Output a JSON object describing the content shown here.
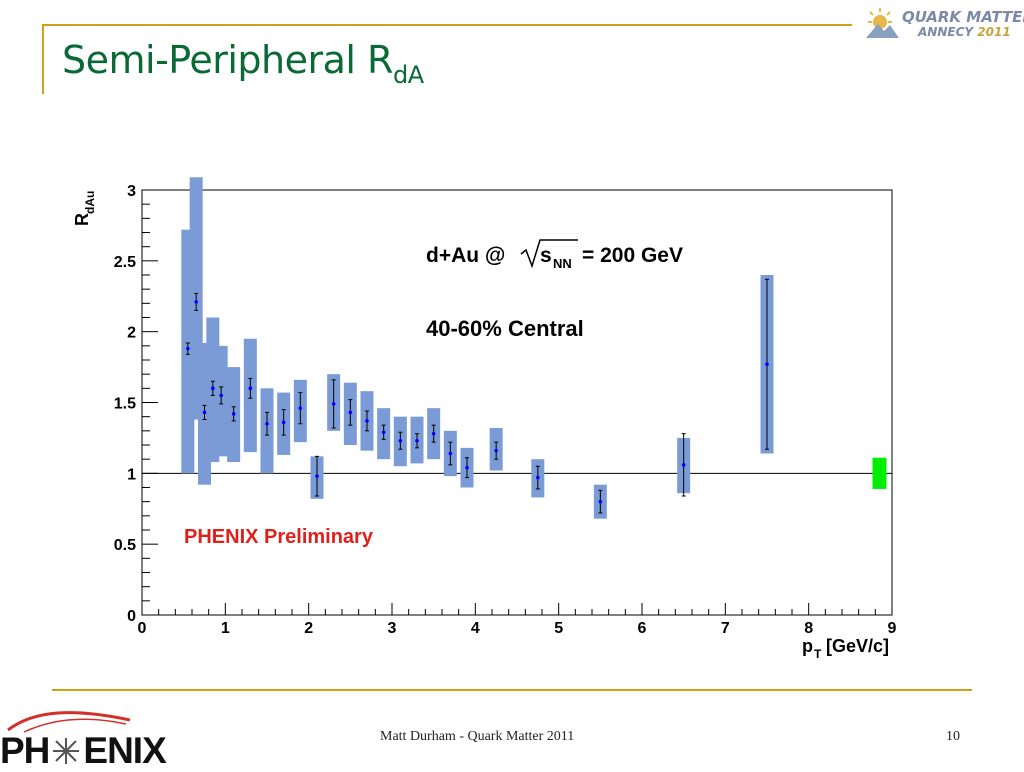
{
  "slide": {
    "title_main": "Semi-Peripheral R",
    "title_sub": "dA",
    "footer": "Matt Durham - Quark Matter 2011",
    "page_number": "10"
  },
  "logos": {
    "conference_line1": "QUARK MATTER",
    "conference_line2": "ANNECY",
    "conference_year": "2011",
    "phenix": "PH",
    "phenix_end": "ENIX"
  },
  "colors": {
    "title": "#0a6a36",
    "accent_rule": "#d4a017",
    "syst_box": "#7b9bd6",
    "point": "#0000ff",
    "norm_box": "#00ee00",
    "preliminary": "#e0201c"
  },
  "chart_data": {
    "type": "scatter",
    "ylabel_main": "R",
    "ylabel_sub": "dAu",
    "xlabel_main": "p",
    "xlabel_sub": "T",
    "xlabel_unit": "[GeV/c]",
    "xlim": [
      0,
      9
    ],
    "ylim": [
      0,
      3
    ],
    "x_ticks": [
      "0",
      "1",
      "2",
      "3",
      "4",
      "5",
      "6",
      "7",
      "8",
      "9"
    ],
    "y_ticks": [
      "0",
      "0.5",
      "1",
      "1.5",
      "2",
      "2.5",
      "3"
    ],
    "reference_line": 1,
    "annotations": {
      "system_prefix": "d+Au @",
      "system_s": "s",
      "system_nn": "NN",
      "system_energy": "= 200 GeV",
      "centrality": "40-60% Central",
      "preliminary": "PHENIX Preliminary"
    },
    "series": [
      {
        "points": [
          {
            "x": 0.55,
            "y": 1.88,
            "stat": 0.04,
            "syst": [
              1.0,
              2.72
            ]
          },
          {
            "x": 0.65,
            "y": 2.21,
            "stat": 0.06,
            "syst": [
              1.38,
              3.1
            ]
          },
          {
            "x": 0.75,
            "y": 1.43,
            "stat": 0.05,
            "syst": [
              0.92,
              1.92
            ]
          },
          {
            "x": 0.85,
            "y": 1.6,
            "stat": 0.05,
            "syst": [
              1.08,
              2.1
            ]
          },
          {
            "x": 0.95,
            "y": 1.55,
            "stat": 0.06,
            "syst": [
              1.12,
              1.9
            ]
          },
          {
            "x": 1.1,
            "y": 1.42,
            "stat": 0.05,
            "syst": [
              1.08,
              1.75
            ]
          },
          {
            "x": 1.3,
            "y": 1.6,
            "stat": 0.07,
            "syst": [
              1.15,
              1.95
            ]
          },
          {
            "x": 1.5,
            "y": 1.35,
            "stat": 0.08,
            "syst": [
              1.0,
              1.6
            ]
          },
          {
            "x": 1.7,
            "y": 1.36,
            "stat": 0.09,
            "syst": [
              1.13,
              1.57
            ]
          },
          {
            "x": 1.9,
            "y": 1.46,
            "stat": 0.11,
            "syst": [
              1.22,
              1.66
            ]
          },
          {
            "x": 2.1,
            "y": 0.98,
            "stat": 0.14,
            "syst": [
              0.82,
              1.12
            ]
          },
          {
            "x": 2.3,
            "y": 1.49,
            "stat": 0.17,
            "syst": [
              1.3,
              1.7
            ]
          },
          {
            "x": 2.5,
            "y": 1.43,
            "stat": 0.09,
            "syst": [
              1.2,
              1.64
            ]
          },
          {
            "x": 2.7,
            "y": 1.37,
            "stat": 0.07,
            "syst": [
              1.16,
              1.58
            ]
          },
          {
            "x": 2.9,
            "y": 1.29,
            "stat": 0.05,
            "syst": [
              1.1,
              1.46
            ]
          },
          {
            "x": 3.1,
            "y": 1.23,
            "stat": 0.06,
            "syst": [
              1.05,
              1.4
            ]
          },
          {
            "x": 3.3,
            "y": 1.23,
            "stat": 0.05,
            "syst": [
              1.07,
              1.4
            ]
          },
          {
            "x": 3.5,
            "y": 1.28,
            "stat": 0.06,
            "syst": [
              1.1,
              1.46
            ]
          },
          {
            "x": 3.7,
            "y": 1.14,
            "stat": 0.08,
            "syst": [
              0.98,
              1.3
            ]
          },
          {
            "x": 3.9,
            "y": 1.04,
            "stat": 0.07,
            "syst": [
              0.9,
              1.18
            ]
          },
          {
            "x": 4.25,
            "y": 1.16,
            "stat": 0.06,
            "syst": [
              1.02,
              1.32
            ]
          },
          {
            "x": 4.75,
            "y": 0.97,
            "stat": 0.08,
            "syst": [
              0.83,
              1.1
            ]
          },
          {
            "x": 5.5,
            "y": 0.8,
            "stat": 0.08,
            "syst": [
              0.68,
              0.92
            ]
          },
          {
            "x": 6.5,
            "y": 1.06,
            "stat": 0.22,
            "syst": [
              0.86,
              1.25
            ]
          },
          {
            "x": 7.5,
            "y": 1.77,
            "stat": 0.6,
            "syst": [
              1.14,
              2.4
            ]
          }
        ]
      }
    ],
    "normalization_box": {
      "x": 8.85,
      "y_low": 0.89,
      "y_high": 1.11
    }
  }
}
